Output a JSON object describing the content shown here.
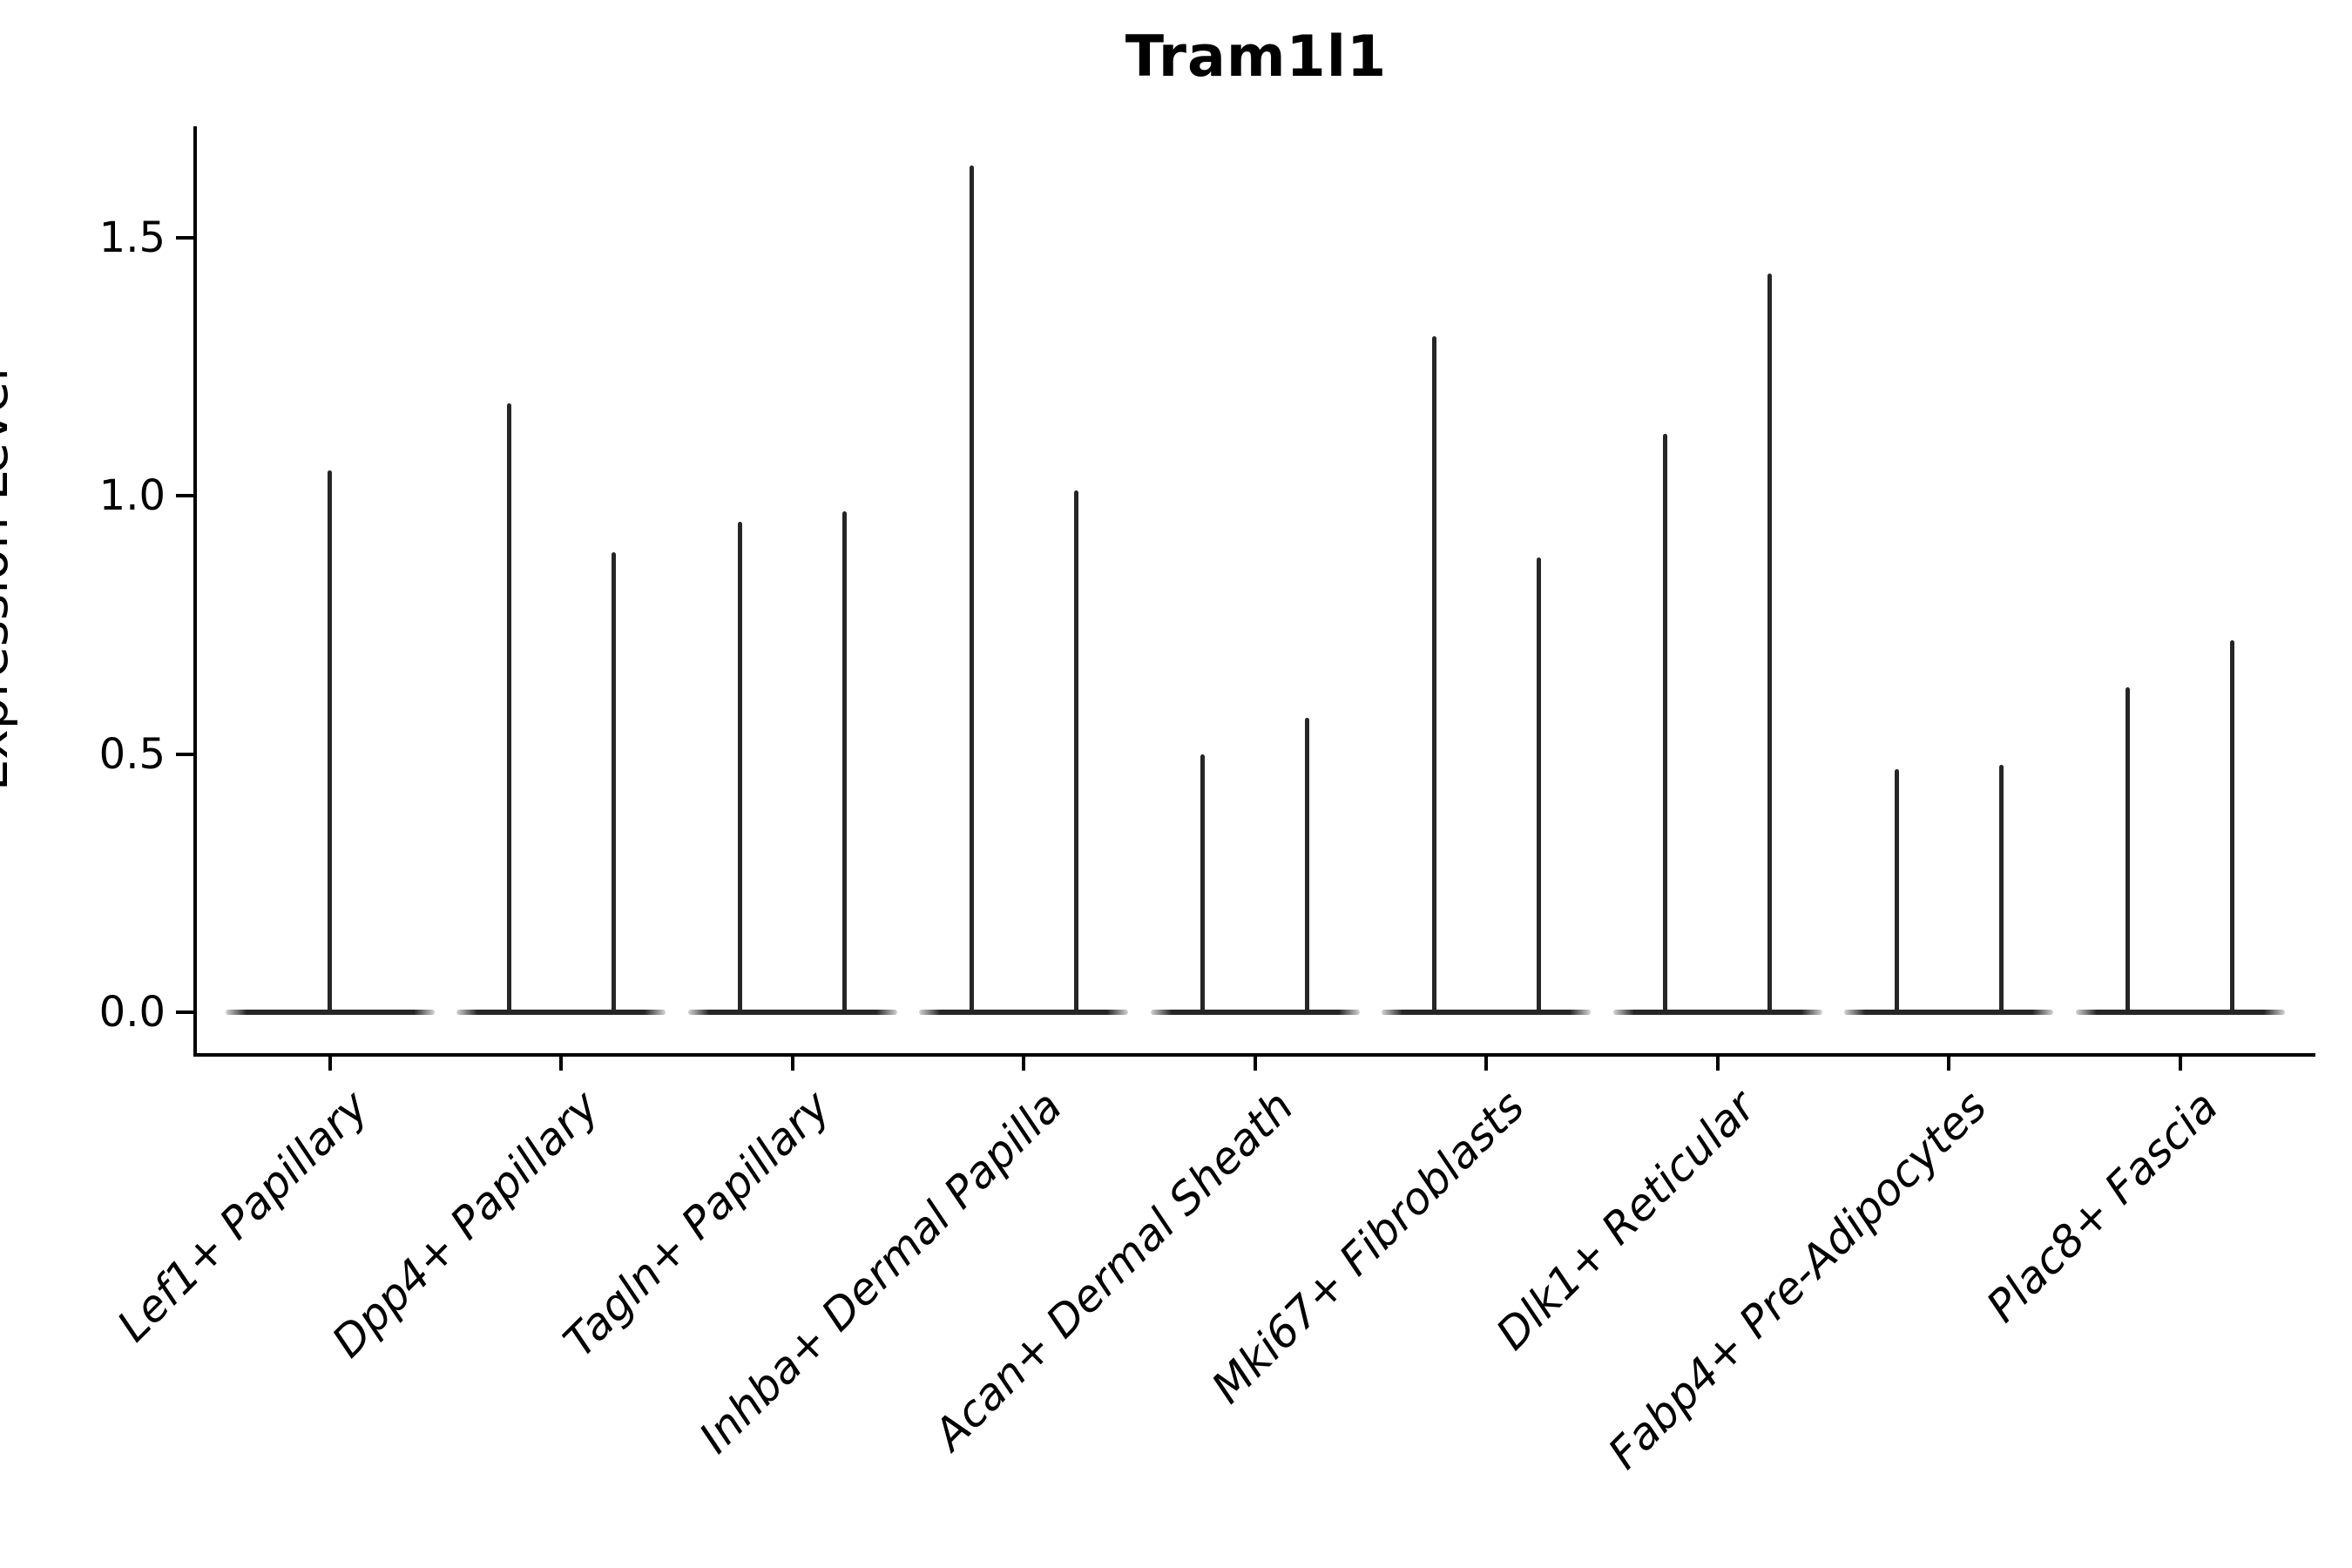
{
  "chart_data": {
    "type": "violin",
    "title": "Tram1l1",
    "xlabel": "",
    "ylabel": "Expression Level",
    "yticks": [
      0.0,
      0.5,
      1.0,
      1.5
    ],
    "ylim": [
      -0.08,
      1.72
    ],
    "grid": false,
    "legend": "none",
    "categories": [
      "Lef1+ Papillary",
      "Dpp4+ Papillary",
      "Tagln+ Papillary",
      "Inhba+ Dermal Papilla",
      "Acan+ Dermal Sheath",
      "Mki67+ Fibroblasts",
      "Dlk1+ Reticular",
      "Fabp4+ Pre-Adipocytes",
      "Plac8+ Fascia"
    ],
    "violin_max_expression": [
      [
        1.05
      ],
      [
        1.18,
        0.89
      ],
      [
        0.95,
        0.97
      ],
      [
        1.64,
        1.01
      ],
      [
        0.5,
        0.57
      ],
      [
        1.31,
        0.88
      ],
      [
        1.12,
        1.43
      ],
      [
        0.47,
        0.48
      ],
      [
        0.63,
        0.72
      ]
    ],
    "description": "Violin plot of Tram1l1 expression; each violin is a flat base at 0 with a thin spike to its maximum expression value. First category shows a single centered spike; all others show two spikes per category.",
    "colors": {
      "violin_line": "#262626",
      "axis": "#000000",
      "background": "#ffffff"
    }
  }
}
